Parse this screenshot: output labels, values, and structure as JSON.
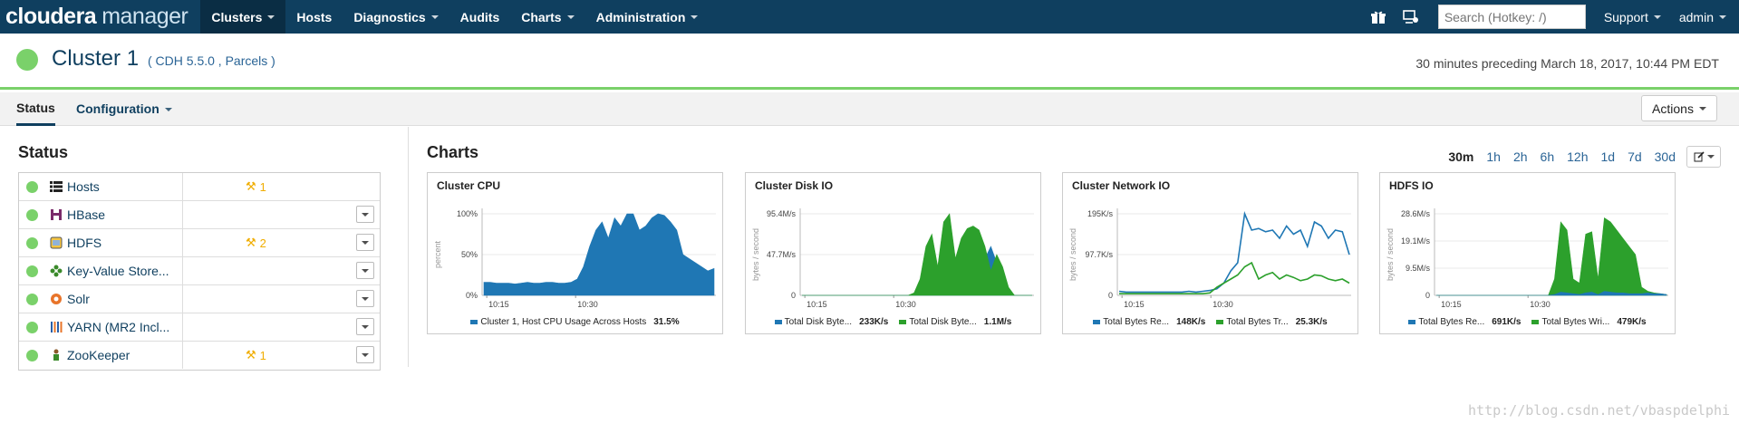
{
  "app": {
    "logo_main": "cloudera",
    "logo_sub": "manager"
  },
  "nav": {
    "items": [
      {
        "label": "Clusters",
        "dropdown": true,
        "active": true
      },
      {
        "label": "Hosts",
        "dropdown": false
      },
      {
        "label": "Diagnostics",
        "dropdown": true
      },
      {
        "label": "Audits",
        "dropdown": false
      },
      {
        "label": "Charts",
        "dropdown": true
      },
      {
        "label": "Administration",
        "dropdown": true
      }
    ],
    "search_placeholder": "Search (Hotkey: /)",
    "support_label": "Support",
    "user_label": "admin"
  },
  "cluster": {
    "name": "Cluster 1",
    "version_info": "( CDH 5.5.0 , Parcels )",
    "time_range": "30 minutes preceding March 18, 2017, 10:44 PM EDT"
  },
  "tabs": {
    "status": "Status",
    "configuration": "Configuration",
    "actions": "Actions"
  },
  "status_panel": {
    "title": "Status",
    "services": [
      {
        "name": "Hosts",
        "icon": "list-icon",
        "warnings": "1",
        "has_dropdown": false
      },
      {
        "name": "HBase",
        "icon": "hbase-icon",
        "warnings": "",
        "has_dropdown": true
      },
      {
        "name": "HDFS",
        "icon": "hdfs-icon",
        "warnings": "2",
        "has_dropdown": true
      },
      {
        "name": "Key-Value Store...",
        "icon": "keyvalue-icon",
        "warnings": "",
        "has_dropdown": true
      },
      {
        "name": "Solr",
        "icon": "solr-icon",
        "warnings": "",
        "has_dropdown": true
      },
      {
        "name": "YARN (MR2 Incl...",
        "icon": "yarn-icon",
        "warnings": "",
        "has_dropdown": true
      },
      {
        "name": "ZooKeeper",
        "icon": "zookeeper-icon",
        "warnings": "1",
        "has_dropdown": true
      }
    ]
  },
  "charts_panel": {
    "title": "Charts",
    "ranges": [
      "30m",
      "1h",
      "2h",
      "6h",
      "12h",
      "1d",
      "7d",
      "30d"
    ],
    "selected_range": "30m"
  },
  "colors": {
    "blue": "#1f77b4",
    "green": "#2ca02c",
    "status_green": "#7ad16a",
    "nav_bg": "#0f3f5f",
    "warning": "#f0ad00"
  },
  "chart_data": [
    {
      "type": "area",
      "title": "Cluster CPU",
      "ylabel": "percent",
      "ylim": [
        0,
        100
      ],
      "y_ticks": [
        "100%",
        "50%",
        "0%"
      ],
      "x_ticks": [
        "10:15",
        "10:30"
      ],
      "series": [
        {
          "name": "Cluster 1, Host CPU Usage Across Hosts",
          "summary": "31.5%",
          "color": "blue",
          "values": [
            16,
            16,
            15,
            15,
            15,
            14,
            15,
            16,
            15,
            15,
            16,
            16,
            15,
            15,
            16,
            20,
            35,
            60,
            80,
            90,
            70,
            95,
            85,
            100,
            100,
            80,
            85,
            95,
            100,
            98,
            90,
            80,
            50,
            45,
            40,
            35,
            30,
            33
          ]
        }
      ]
    },
    {
      "type": "area",
      "title": "Cluster Disk IO",
      "ylabel": "bytes / second",
      "ylim": [
        0,
        100
      ],
      "y_ticks": [
        "95.4M/s",
        "47.7M/s",
        "0"
      ],
      "x_ticks": [
        "10:15",
        "10:30"
      ],
      "series": [
        {
          "name": "Total Disk Byte...",
          "summary": "233K/s",
          "color": "blue",
          "values": [
            0,
            0,
            0,
            0,
            0,
            0,
            0,
            0,
            0,
            0,
            0,
            0,
            0,
            0,
            0,
            0,
            0,
            0,
            0,
            2,
            8,
            30,
            45,
            15,
            60,
            70,
            20,
            45,
            55,
            50,
            30,
            45,
            60,
            40,
            20,
            5,
            0,
            0,
            0,
            0
          ]
        },
        {
          "name": "Total Disk Byte...",
          "summary": "1.1M/s",
          "color": "green",
          "values": [
            0,
            0,
            0,
            0,
            0,
            0,
            0,
            0,
            0,
            0,
            0,
            0,
            0,
            0,
            0,
            0,
            0,
            0,
            0,
            3,
            20,
            60,
            75,
            35,
            90,
            100,
            45,
            70,
            82,
            85,
            80,
            60,
            30,
            50,
            35,
            10,
            0,
            0,
            0,
            0
          ]
        }
      ]
    },
    {
      "type": "line",
      "title": "Cluster Network IO",
      "ylabel": "bytes / second",
      "ylim": [
        0,
        100
      ],
      "y_ticks": [
        "195K/s",
        "97.7K/s",
        "0"
      ],
      "x_ticks": [
        "10:15",
        "10:30"
      ],
      "series": [
        {
          "name": "Total Bytes Re...",
          "summary": "148K/s",
          "color": "blue",
          "values": [
            5,
            4,
            4,
            4,
            4,
            4,
            4,
            4,
            4,
            4,
            5,
            4,
            5,
            6,
            8,
            15,
            30,
            40,
            100,
            80,
            82,
            78,
            80,
            70,
            85,
            75,
            80,
            60,
            90,
            85,
            70,
            80,
            78,
            50
          ]
        },
        {
          "name": "Total Bytes Tr...",
          "summary": "25.3K/s",
          "color": "green",
          "values": [
            2,
            2,
            2,
            2,
            2,
            2,
            2,
            2,
            2,
            2,
            2,
            2,
            2,
            3,
            10,
            15,
            20,
            25,
            35,
            40,
            20,
            25,
            28,
            20,
            25,
            22,
            18,
            20,
            25,
            24,
            20,
            18,
            20,
            15
          ]
        }
      ]
    },
    {
      "type": "area",
      "title": "HDFS IO",
      "ylabel": "bytes / second",
      "ylim": [
        0,
        100
      ],
      "y_ticks": [
        "28.6M/s",
        "19.1M/s",
        "9.5M/s",
        "0"
      ],
      "x_ticks": [
        "10:15",
        "10:30"
      ],
      "series": [
        {
          "name": "Total Bytes Wri...",
          "summary": "479K/s",
          "color": "green",
          "values": [
            0,
            0,
            0,
            0,
            0,
            0,
            0,
            0,
            0,
            0,
            0,
            0,
            0,
            0,
            0,
            0,
            0,
            0,
            0,
            20,
            90,
            80,
            20,
            15,
            75,
            78,
            20,
            95,
            90,
            80,
            70,
            60,
            50,
            10,
            5,
            3,
            2,
            1
          ]
        },
        {
          "name": "Total Bytes Re...",
          "summary": "691K/s",
          "color": "blue",
          "values": [
            0,
            0,
            0,
            0,
            0,
            0,
            0,
            0,
            0,
            0,
            0,
            0,
            0,
            0,
            0,
            0,
            0,
            0,
            0,
            1,
            4,
            3,
            2,
            1,
            3,
            4,
            1,
            5,
            4,
            3,
            3,
            2,
            2,
            2,
            3,
            2,
            2,
            1
          ]
        }
      ],
      "legend_order": [
        "Total Bytes Re...",
        "Total Bytes Wri..."
      ]
    }
  ],
  "watermark": "http://blog.csdn.net/vbaspdelphi"
}
